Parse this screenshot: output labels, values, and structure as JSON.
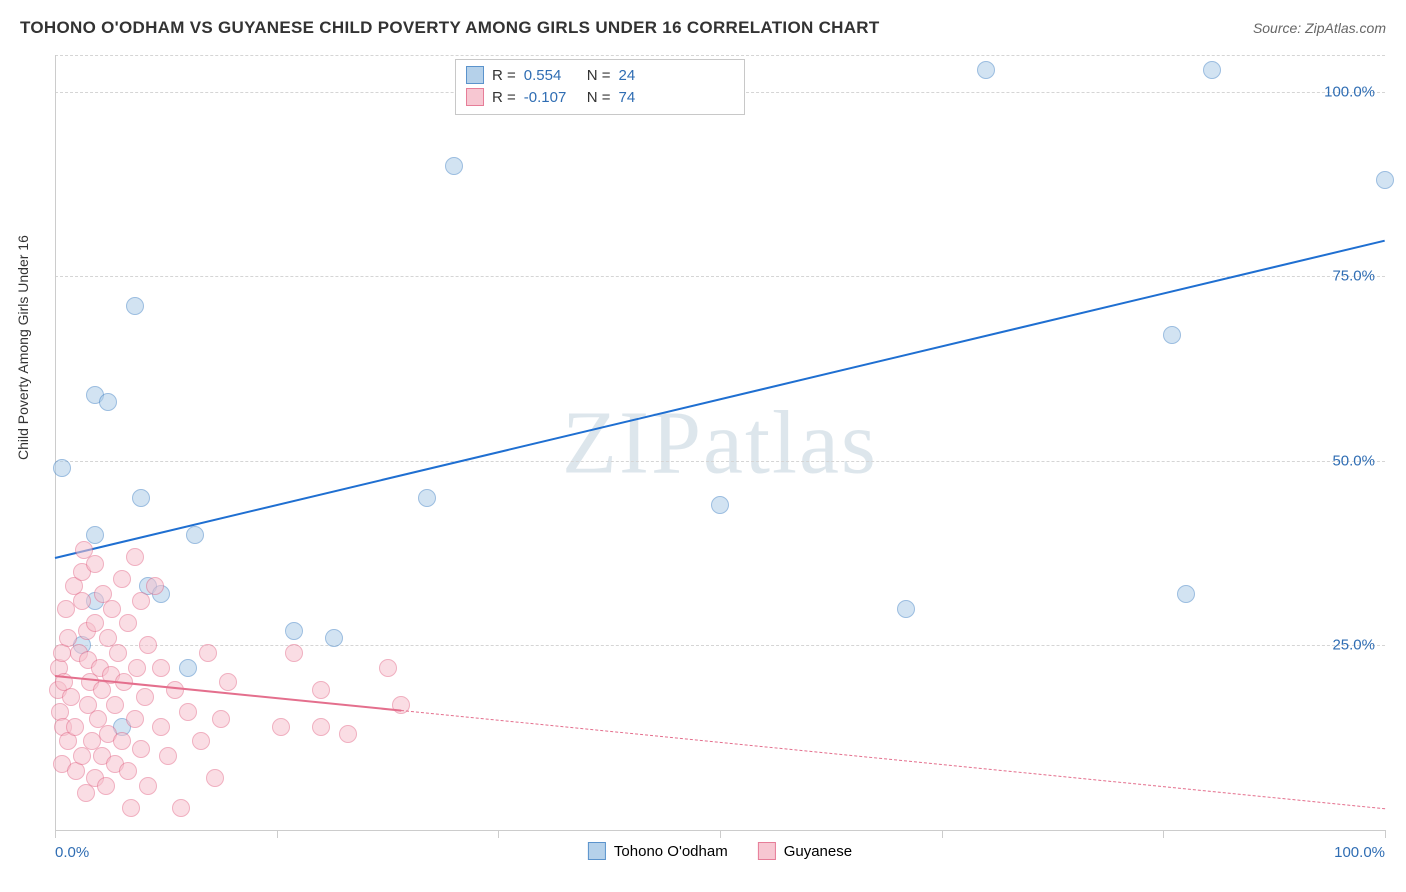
{
  "header": {
    "title": "TOHONO O'ODHAM VS GUYANESE CHILD POVERTY AMONG GIRLS UNDER 16 CORRELATION CHART",
    "source": "Source: ZipAtlas.com"
  },
  "y_axis": {
    "label": "Child Poverty Among Girls Under 16"
  },
  "watermark": "ZIPatlas",
  "chart": {
    "type": "scatter",
    "xlim": [
      0,
      100
    ],
    "ylim": [
      0,
      105
    ],
    "background_color": "#ffffff",
    "grid_color": "#d5d5d5",
    "axis_color": "#cccccc",
    "tick_color": "#2f6db3",
    "x_ticks": [
      0,
      16.67,
      33.33,
      50,
      66.67,
      83.33,
      100
    ],
    "x_tick_labels": [
      {
        "x": 0,
        "label": "0.0%"
      },
      {
        "x": 100,
        "label": "100.0%"
      }
    ],
    "y_grid": [
      25,
      50,
      75,
      100,
      105
    ],
    "y_tick_labels": [
      {
        "y": 25,
        "label": "25.0%"
      },
      {
        "y": 50,
        "label": "50.0%"
      },
      {
        "y": 75,
        "label": "75.0%"
      },
      {
        "y": 100,
        "label": "100.0%"
      }
    ],
    "marker_radius": 9
  },
  "series": [
    {
      "name": "Tohono O'odham",
      "fill": "#aecde8",
      "stroke": "#4a88c7",
      "reg_color": "#1f6fd1",
      "reg": {
        "x1": 0,
        "y1": 37,
        "x2": 100,
        "y2": 80
      },
      "R": "0.554",
      "N": "24",
      "points": [
        [
          0.5,
          49
        ],
        [
          2,
          25
        ],
        [
          3,
          40
        ],
        [
          3,
          31
        ],
        [
          3,
          59
        ],
        [
          4,
          58
        ],
        [
          5,
          14
        ],
        [
          6,
          71
        ],
        [
          6.5,
          45
        ],
        [
          7,
          33
        ],
        [
          8,
          32
        ],
        [
          10,
          22
        ],
        [
          10.5,
          40
        ],
        [
          18,
          27
        ],
        [
          21,
          26
        ],
        [
          28,
          45
        ],
        [
          30,
          90
        ],
        [
          50,
          44
        ],
        [
          64,
          30
        ],
        [
          70,
          103
        ],
        [
          85,
          32
        ],
        [
          84,
          67
        ],
        [
          87,
          103
        ],
        [
          100,
          88
        ]
      ]
    },
    {
      "name": "Guyanese",
      "fill": "#f7c2ce",
      "stroke": "#e46f8d",
      "reg_color": "#e46f8d",
      "reg": {
        "x1": 0,
        "y1": 21,
        "x2": 100,
        "y2": 3
      },
      "reg_solid_until": 26,
      "R": "-0.107",
      "N": "74",
      "points": [
        [
          0.2,
          19
        ],
        [
          0.3,
          22
        ],
        [
          0.4,
          16
        ],
        [
          0.5,
          24
        ],
        [
          0.5,
          9
        ],
        [
          0.6,
          14
        ],
        [
          0.7,
          20
        ],
        [
          0.8,
          30
        ],
        [
          1,
          12
        ],
        [
          1,
          26
        ],
        [
          1.2,
          18
        ],
        [
          1.4,
          33
        ],
        [
          1.5,
          14
        ],
        [
          1.6,
          8
        ],
        [
          1.8,
          24
        ],
        [
          2,
          35
        ],
        [
          2,
          31
        ],
        [
          2,
          10
        ],
        [
          2.2,
          38
        ],
        [
          2.3,
          5
        ],
        [
          2.4,
          27
        ],
        [
          2.5,
          17
        ],
        [
          2.5,
          23
        ],
        [
          2.6,
          20
        ],
        [
          2.8,
          12
        ],
        [
          3,
          36
        ],
        [
          3,
          28
        ],
        [
          3,
          7
        ],
        [
          3.2,
          15
        ],
        [
          3.4,
          22
        ],
        [
          3.5,
          10
        ],
        [
          3.5,
          19
        ],
        [
          3.6,
          32
        ],
        [
          3.8,
          6
        ],
        [
          4,
          26
        ],
        [
          4,
          13
        ],
        [
          4.2,
          21
        ],
        [
          4.3,
          30
        ],
        [
          4.5,
          9
        ],
        [
          4.5,
          17
        ],
        [
          4.7,
          24
        ],
        [
          5,
          34
        ],
        [
          5,
          12
        ],
        [
          5.2,
          20
        ],
        [
          5.5,
          8
        ],
        [
          5.5,
          28
        ],
        [
          5.7,
          3
        ],
        [
          6,
          37
        ],
        [
          6,
          15
        ],
        [
          6.2,
          22
        ],
        [
          6.5,
          11
        ],
        [
          6.5,
          31
        ],
        [
          6.8,
          18
        ],
        [
          7,
          6
        ],
        [
          7,
          25
        ],
        [
          7.5,
          33
        ],
        [
          8,
          14
        ],
        [
          8,
          22
        ],
        [
          8.5,
          10
        ],
        [
          9,
          19
        ],
        [
          9.5,
          3
        ],
        [
          10,
          16
        ],
        [
          11,
          12
        ],
        [
          11.5,
          24
        ],
        [
          12,
          7
        ],
        [
          12.5,
          15
        ],
        [
          13,
          20
        ],
        [
          17,
          14
        ],
        [
          18,
          24
        ],
        [
          20,
          14
        ],
        [
          20,
          19
        ],
        [
          22,
          13
        ],
        [
          25,
          22
        ],
        [
          26,
          17
        ]
      ]
    }
  ],
  "legend_stats": {
    "r_label": "R",
    "n_label": "N",
    "eq": "="
  },
  "legend_bottom": [
    {
      "name": "Tohono O'odham",
      "fill": "#aecde8",
      "stroke": "#4a88c7"
    },
    {
      "name": "Guyanese",
      "fill": "#f7c2ce",
      "stroke": "#e46f8d"
    }
  ]
}
